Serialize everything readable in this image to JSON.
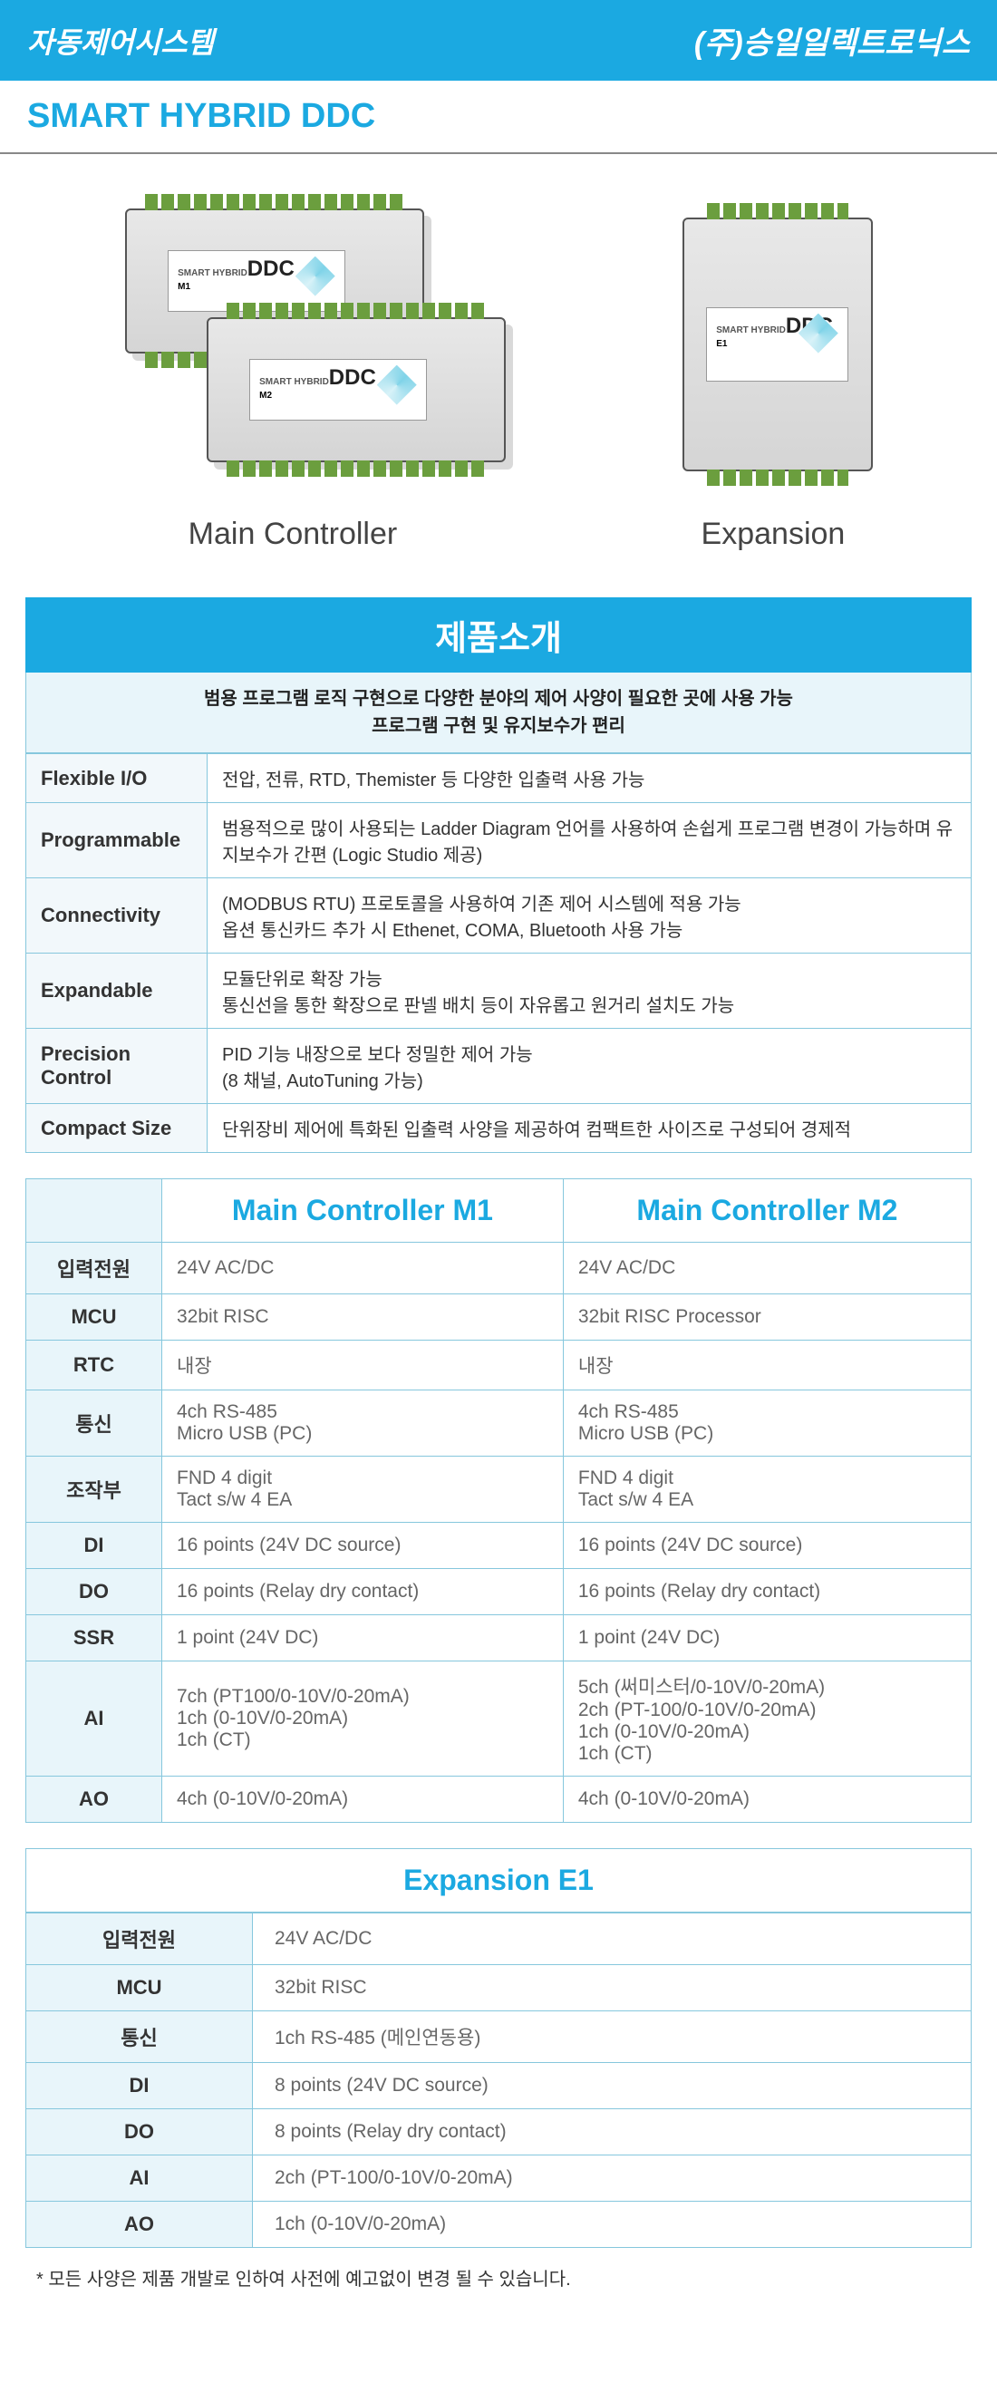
{
  "header": {
    "left": "자동제어시스템",
    "right": "(주)승일일렉트로닉스"
  },
  "subtitle": "SMART HYBRID DDC",
  "device_label": {
    "small": "SMART HYBRID",
    "big": "DDC",
    "m1": "M1",
    "m2": "M2",
    "e1": "E1"
  },
  "captions": {
    "main": "Main Controller",
    "exp": "Expansion"
  },
  "intro": {
    "title": "제품소개",
    "desc1": "범용 프로그램 로직 구현으로 다양한 분야의 제어 사양이 필요한 곳에 사용 가능",
    "desc2": "프로그램  구현 및 유지보수가 편리",
    "rows": [
      {
        "k": "Flexible I/O",
        "v": "전압, 전류, RTD, Themister 등 다양한 입출력 사용 가능"
      },
      {
        "k": "Programmable",
        "v": "범용적으로 많이 사용되는 Ladder Diagram 언어를 사용하여 손쉽게 프로그램 변경이 가능하며 유지보수가 간편 (Logic Studio 제공)"
      },
      {
        "k": "Connectivity",
        "v": "(MODBUS RTU) 프로토콜을 사용하여 기존 제어 시스템에 적용 가능\n옵션 통신카드 추가 시 Ethenet, COMA, Bluetooth 사용 가능"
      },
      {
        "k": "Expandable",
        "v": "모듈단위로 확장 가능\n통신선을 통한 확장으로 판넬 배치 등이 자유롭고 원거리 설치도 가능"
      },
      {
        "k": "Precision Control",
        "v": "PID 기능 내장으로 보다 정밀한 제어 가능\n(8  채널, AutoTuning 가능)"
      },
      {
        "k": "Compact Size",
        "v": "단위장비 제어에 특화된 입출력 사양을 제공하여 컴팩트한 사이즈로 구성되어 경제적"
      }
    ]
  },
  "spec": {
    "headers": [
      "",
      "Main Controller M1",
      "Main Controller M2"
    ],
    "rows": [
      [
        "입력전원",
        "24V AC/DC",
        "24V AC/DC"
      ],
      [
        "MCU",
        "32bit RISC",
        "32bit RISC Processor"
      ],
      [
        "RTC",
        "내장",
        "내장"
      ],
      [
        "통신",
        "4ch RS-485\nMicro USB (PC)",
        "4ch RS-485\nMicro USB (PC)"
      ],
      [
        "조작부",
        "FND 4 digit\nTact s/w 4 EA",
        "FND 4 digit\nTact s/w 4 EA"
      ],
      [
        "DI",
        "16 points (24V DC source)",
        "16 points (24V DC source)"
      ],
      [
        "DO",
        "16 points (Relay dry contact)",
        "16 points (Relay dry contact)"
      ],
      [
        "SSR",
        "1 point (24V DC)",
        "1 point (24V DC)"
      ],
      [
        "AI",
        "7ch (PT100/0-10V/0-20mA)\n1ch (0-10V/0-20mA)\n1ch (CT)",
        "5ch (써미스터/0-10V/0-20mA)\n2ch (PT-100/0-10V/0-20mA)\n1ch (0-10V/0-20mA)\n1ch (CT)"
      ],
      [
        "AO",
        "4ch (0-10V/0-20mA)",
        "4ch (0-10V/0-20mA)"
      ]
    ]
  },
  "exp": {
    "title": "Expansion E1",
    "rows": [
      [
        "입력전원",
        "24V AC/DC"
      ],
      [
        "MCU",
        "32bit RISC"
      ],
      [
        "통신",
        "1ch RS-485 (메인연동용)"
      ],
      [
        "DI",
        "8 points (24V DC source)"
      ],
      [
        "DO",
        "8 points (Relay dry contact)"
      ],
      [
        "AI",
        "2ch (PT-100/0-10V/0-20mA)"
      ],
      [
        "AO",
        "1ch (0-10V/0-20mA)"
      ]
    ]
  },
  "footnote": "* 모든 사양은 제품 개발로 인하여 사전에 예고없이 변경 될 수 있습니다."
}
